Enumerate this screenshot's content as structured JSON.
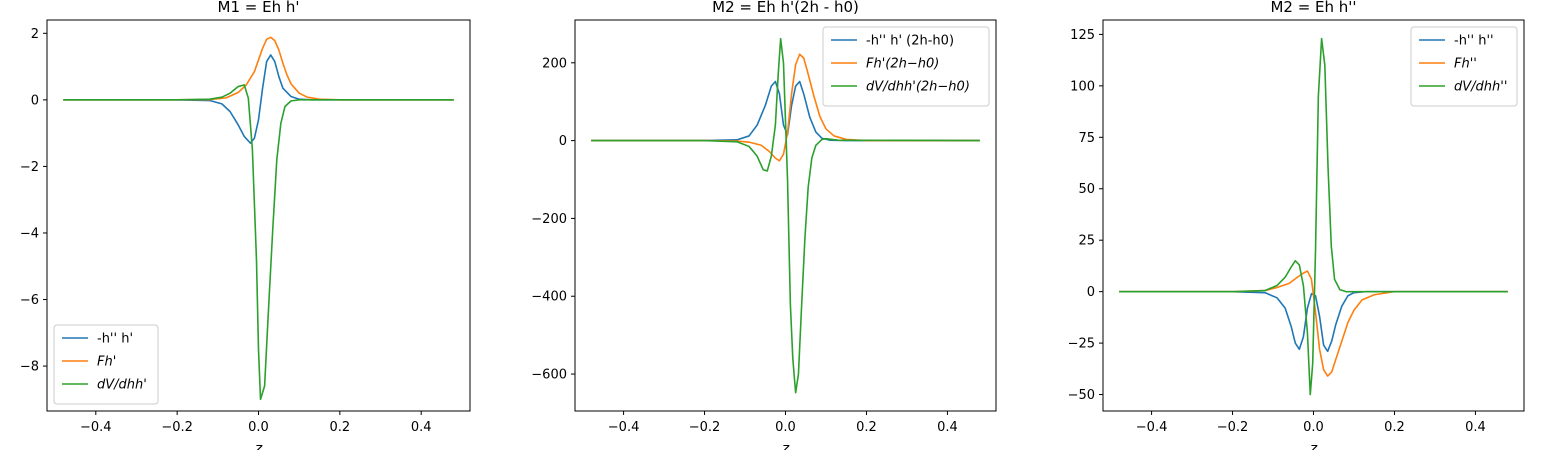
{
  "chart_data": [
    {
      "type": "line",
      "title": "M1 = Eh h'",
      "xlabel": "z",
      "ylabel": "",
      "xlim": [
        -0.52,
        0.52
      ],
      "ylim": [
        -9.35,
        2.4
      ],
      "xticks": [
        -0.4,
        -0.2,
        0.0,
        0.2,
        0.4
      ],
      "xtick_labels": [
        "−0.4",
        "−0.2",
        "0.0",
        "0.2",
        "0.4"
      ],
      "yticks": [
        2,
        0,
        -2,
        -4,
        -6,
        -8
      ],
      "ytick_labels": [
        "2",
        "0",
        "−2",
        "−4",
        "−6",
        "−8"
      ],
      "legend_position": "lower-left",
      "grid": false,
      "series": [
        {
          "name": "-h'' h'",
          "color": "#1f77b4",
          "points": [
            [
              -0.48,
              0
            ],
            [
              -0.2,
              0
            ],
            [
              -0.12,
              -0.02
            ],
            [
              -0.09,
              -0.12
            ],
            [
              -0.07,
              -0.35
            ],
            [
              -0.05,
              -0.75
            ],
            [
              -0.035,
              -1.1
            ],
            [
              -0.02,
              -1.3
            ],
            [
              -0.01,
              -1.15
            ],
            [
              0.0,
              -0.6
            ],
            [
              0.01,
              0.35
            ],
            [
              0.02,
              1.15
            ],
            [
              0.03,
              1.35
            ],
            [
              0.04,
              1.15
            ],
            [
              0.05,
              0.7
            ],
            [
              0.06,
              0.35
            ],
            [
              0.08,
              0.1
            ],
            [
              0.1,
              0.02
            ],
            [
              0.13,
              0
            ],
            [
              0.48,
              0
            ]
          ]
        },
        {
          "name": "Fh'",
          "color": "#ff7f0e",
          "points": [
            [
              -0.48,
              0
            ],
            [
              -0.2,
              0
            ],
            [
              -0.12,
              0.01
            ],
            [
              -0.08,
              0.06
            ],
            [
              -0.05,
              0.22
            ],
            [
              -0.03,
              0.45
            ],
            [
              -0.01,
              0.85
            ],
            [
              0.0,
              1.2
            ],
            [
              0.01,
              1.55
            ],
            [
              0.02,
              1.82
            ],
            [
              0.03,
              1.88
            ],
            [
              0.04,
              1.78
            ],
            [
              0.05,
              1.5
            ],
            [
              0.06,
              1.1
            ],
            [
              0.07,
              0.75
            ],
            [
              0.08,
              0.48
            ],
            [
              0.1,
              0.2
            ],
            [
              0.12,
              0.08
            ],
            [
              0.15,
              0.02
            ],
            [
              0.2,
              0
            ],
            [
              0.48,
              0
            ]
          ]
        },
        {
          "name": "dV/dhh'",
          "color": "#2ca02c",
          "points": [
            [
              -0.48,
              0
            ],
            [
              -0.2,
              0
            ],
            [
              -0.12,
              0.02
            ],
            [
              -0.09,
              0.08
            ],
            [
              -0.07,
              0.2
            ],
            [
              -0.05,
              0.4
            ],
            [
              -0.035,
              0.45
            ],
            [
              -0.025,
              0.05
            ],
            [
              -0.015,
              -1.5
            ],
            [
              -0.005,
              -4.8
            ],
            [
              0.0,
              -7.5
            ],
            [
              0.005,
              -9.0
            ],
            [
              0.015,
              -8.6
            ],
            [
              0.025,
              -6.2
            ],
            [
              0.035,
              -3.9
            ],
            [
              0.045,
              -1.8
            ],
            [
              0.055,
              -0.7
            ],
            [
              0.065,
              -0.2
            ],
            [
              0.08,
              -0.03
            ],
            [
              0.1,
              0
            ],
            [
              0.48,
              0
            ]
          ]
        }
      ]
    },
    {
      "type": "line",
      "title": "M2 = Eh h'(2h - h0)",
      "xlabel": "z",
      "ylabel": "",
      "xlim": [
        -0.52,
        0.52
      ],
      "ylim": [
        -695,
        310
      ],
      "xticks": [
        -0.4,
        -0.2,
        0.0,
        0.2,
        0.4
      ],
      "xtick_labels": [
        "−0.4",
        "−0.2",
        "0.0",
        "0.2",
        "0.4"
      ],
      "yticks": [
        200,
        0,
        -200,
        -400,
        -600
      ],
      "ytick_labels": [
        "200",
        "0",
        "−200",
        "−400",
        "−600"
      ],
      "legend_position": "upper-right",
      "grid": false,
      "series": [
        {
          "name": "-h'' h' (2h-h0)",
          "color": "#1f77b4",
          "points": [
            [
              -0.48,
              0
            ],
            [
              -0.2,
              0
            ],
            [
              -0.12,
              2
            ],
            [
              -0.09,
              12
            ],
            [
              -0.07,
              40
            ],
            [
              -0.05,
              90
            ],
            [
              -0.035,
              140
            ],
            [
              -0.025,
              152
            ],
            [
              -0.015,
              120
            ],
            [
              -0.005,
              40
            ],
            [
              0.005,
              15
            ],
            [
              0.015,
              90
            ],
            [
              0.025,
              140
            ],
            [
              0.035,
              152
            ],
            [
              0.045,
              120
            ],
            [
              0.06,
              60
            ],
            [
              0.075,
              22
            ],
            [
              0.09,
              6
            ],
            [
              0.11,
              1
            ],
            [
              0.15,
              0
            ],
            [
              0.48,
              0
            ]
          ]
        },
        {
          "name": "Fh'(2h−h0)",
          "color": "#ff7f0e",
          "points": [
            [
              -0.48,
              0
            ],
            [
              -0.2,
              0
            ],
            [
              -0.12,
              -1
            ],
            [
              -0.09,
              -4
            ],
            [
              -0.06,
              -12
            ],
            [
              -0.04,
              -28
            ],
            [
              -0.025,
              -45
            ],
            [
              -0.015,
              -52
            ],
            [
              -0.005,
              -35
            ],
            [
              0.005,
              20
            ],
            [
              0.015,
              120
            ],
            [
              0.025,
              195
            ],
            [
              0.035,
              222
            ],
            [
              0.045,
              212
            ],
            [
              0.055,
              175
            ],
            [
              0.07,
              115
            ],
            [
              0.085,
              62
            ],
            [
              0.1,
              30
            ],
            [
              0.12,
              12
            ],
            [
              0.15,
              3
            ],
            [
              0.2,
              0
            ],
            [
              0.48,
              0
            ]
          ]
        },
        {
          "name": "dV/dhh'(2h−h0)",
          "color": "#2ca02c",
          "points": [
            [
              -0.48,
              0
            ],
            [
              -0.2,
              0
            ],
            [
              -0.12,
              -3
            ],
            [
              -0.09,
              -15
            ],
            [
              -0.07,
              -40
            ],
            [
              -0.055,
              -75
            ],
            [
              -0.045,
              -78
            ],
            [
              -0.035,
              -40
            ],
            [
              -0.025,
              40
            ],
            [
              -0.018,
              170
            ],
            [
              -0.012,
              262
            ],
            [
              -0.005,
              200
            ],
            [
              0.005,
              -100
            ],
            [
              0.012,
              -420
            ],
            [
              0.018,
              -560
            ],
            [
              0.025,
              -648
            ],
            [
              0.032,
              -600
            ],
            [
              0.04,
              -420
            ],
            [
              0.048,
              -250
            ],
            [
              0.056,
              -120
            ],
            [
              0.065,
              -45
            ],
            [
              0.075,
              -12
            ],
            [
              0.09,
              3
            ],
            [
              0.1,
              5
            ],
            [
              0.13,
              1
            ],
            [
              0.48,
              0
            ]
          ]
        }
      ]
    },
    {
      "type": "line",
      "title": "M2 = Eh h''",
      "xlabel": "z",
      "ylabel": "",
      "xlim": [
        -0.52,
        0.52
      ],
      "ylim": [
        -58,
        132
      ],
      "xticks": [
        -0.4,
        -0.2,
        0.0,
        0.2,
        0.4
      ],
      "xtick_labels": [
        "−0.4",
        "−0.2",
        "0.0",
        "0.2",
        "0.4"
      ],
      "yticks": [
        125,
        100,
        75,
        50,
        25,
        0,
        -25,
        -50
      ],
      "ytick_labels": [
        "125",
        "100",
        "75",
        "50",
        "25",
        "0",
        "−25",
        "−50"
      ],
      "legend_position": "upper-right",
      "grid": false,
      "series": [
        {
          "name": "-h'' h''",
          "color": "#1f77b4",
          "points": [
            [
              -0.48,
              0
            ],
            [
              -0.2,
              0
            ],
            [
              -0.12,
              -0.5
            ],
            [
              -0.09,
              -3
            ],
            [
              -0.07,
              -8
            ],
            [
              -0.055,
              -17
            ],
            [
              -0.045,
              -25
            ],
            [
              -0.035,
              -28
            ],
            [
              -0.025,
              -22
            ],
            [
              -0.015,
              -8
            ],
            [
              -0.005,
              -1
            ],
            [
              0.005,
              -2
            ],
            [
              0.015,
              -12
            ],
            [
              0.025,
              -26
            ],
            [
              0.035,
              -29
            ],
            [
              0.045,
              -24
            ],
            [
              0.055,
              -16
            ],
            [
              0.07,
              -7
            ],
            [
              0.085,
              -2
            ],
            [
              0.1,
              -0.5
            ],
            [
              0.13,
              0
            ],
            [
              0.48,
              0
            ]
          ]
        },
        {
          "name": "Fh''",
          "color": "#ff7f0e",
          "points": [
            [
              -0.48,
              0
            ],
            [
              -0.2,
              0
            ],
            [
              -0.12,
              0.5
            ],
            [
              -0.09,
              2
            ],
            [
              -0.06,
              4
            ],
            [
              -0.04,
              7
            ],
            [
              -0.025,
              9
            ],
            [
              -0.015,
              10
            ],
            [
              -0.005,
              6
            ],
            [
              0.005,
              -10
            ],
            [
              0.015,
              -28
            ],
            [
              0.025,
              -38
            ],
            [
              0.035,
              -41
            ],
            [
              0.045,
              -39
            ],
            [
              0.055,
              -33
            ],
            [
              0.07,
              -24
            ],
            [
              0.085,
              -15
            ],
            [
              0.1,
              -9
            ],
            [
              0.12,
              -4
            ],
            [
              0.15,
              -1.5
            ],
            [
              0.2,
              0
            ],
            [
              0.48,
              0
            ]
          ]
        },
        {
          "name": "dV/dhh''",
          "color": "#2ca02c",
          "points": [
            [
              -0.48,
              0
            ],
            [
              -0.2,
              0
            ],
            [
              -0.12,
              0.5
            ],
            [
              -0.09,
              3
            ],
            [
              -0.07,
              7
            ],
            [
              -0.055,
              12
            ],
            [
              -0.045,
              15
            ],
            [
              -0.035,
              13
            ],
            [
              -0.025,
              3
            ],
            [
              -0.015,
              -20
            ],
            [
              -0.008,
              -50
            ],
            [
              -0.002,
              -35
            ],
            [
              0.005,
              20
            ],
            [
              0.012,
              95
            ],
            [
              0.02,
              123
            ],
            [
              0.028,
              110
            ],
            [
              0.036,
              60
            ],
            [
              0.044,
              22
            ],
            [
              0.052,
              6
            ],
            [
              0.065,
              1
            ],
            [
              0.08,
              0
            ],
            [
              0.48,
              0
            ]
          ]
        }
      ]
    }
  ]
}
